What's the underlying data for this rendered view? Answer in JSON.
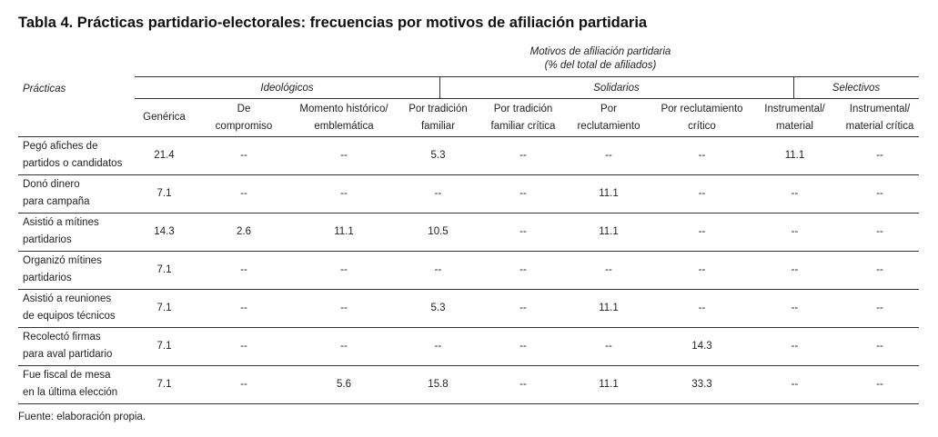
{
  "title": "Tabla 4. Prácticas partidario-electorales: frecuencias por motivos de afiliación partidaria",
  "table": {
    "super_header": [
      "Motivos de afiliación partidaria",
      "(% del total de afiliados)"
    ],
    "stub_header": "Prácticas",
    "groups": [
      "Ideológicos",
      "Solidarios",
      "Selectivos"
    ],
    "columns": [
      "Genérica",
      "De\ncompromiso",
      "Momento histórico/\nemblemática",
      "Por tradición\nfamiliar",
      "Por tradición\nfamiliar crítica",
      "Por\nreclutamiento",
      "Por reclutamiento\ncrítico",
      "Instrumental/\nmaterial",
      "Instrumental/\nmaterial crítica"
    ],
    "rows": [
      {
        "label": "Pegó afiches de\npartidos o candidatos",
        "values": [
          21.4,
          "--",
          "--",
          5.3,
          "--",
          "--",
          "--",
          11.1,
          "--"
        ]
      },
      {
        "label": "Donó dinero\npara campaña",
        "values": [
          7.1,
          "--",
          "--",
          "--",
          "--",
          11.1,
          "--",
          "--",
          "--"
        ]
      },
      {
        "label": "Asistió a mítines\npartidarios",
        "values": [
          14.3,
          2.6,
          11.1,
          10.5,
          "--",
          11.1,
          "--",
          "--",
          "--"
        ]
      },
      {
        "label": "Organizó mítines\npartidarios",
        "values": [
          7.1,
          "--",
          "--",
          "--",
          "--",
          "--",
          "--",
          "--",
          "--"
        ]
      },
      {
        "label": "Asistió a reuniones\nde equipos técnicos",
        "values": [
          7.1,
          "--",
          "--",
          5.3,
          "--",
          11.1,
          "--",
          "--",
          "--"
        ]
      },
      {
        "label": "Recolectó firmas\npara aval partidario",
        "values": [
          7.1,
          "--",
          "--",
          "--",
          "--",
          "--",
          14.3,
          "--",
          "--"
        ]
      },
      {
        "label": "Fue fiscal de mesa\nen la última elección",
        "values": [
          7.1,
          "--",
          5.6,
          15.8,
          "--",
          11.1,
          33.3,
          "--",
          "--"
        ]
      }
    ]
  },
  "footer": "Fuente: elaboración propia."
}
